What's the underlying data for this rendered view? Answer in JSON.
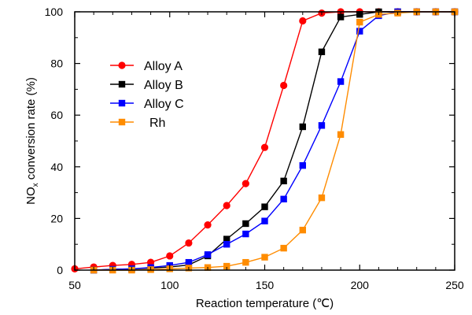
{
  "chart_data": {
    "type": "line",
    "xlabel": "Reaction temperature (℃)",
    "ylabel": "NOx conversion rate (%)",
    "xlim": [
      50,
      250
    ],
    "ylim": [
      0,
      100
    ],
    "xticks": [
      "50",
      "100",
      "150",
      "200",
      "250"
    ],
    "yticks": [
      "0",
      "20",
      "40",
      "60",
      "80",
      "100"
    ],
    "grid": false,
    "legend_position": "upper-left",
    "series": [
      {
        "name": "Alloy A",
        "color": "#ff0000",
        "marker": "circle",
        "x": [
          50,
          60,
          70,
          80,
          90,
          100,
          110,
          120,
          130,
          140,
          150,
          160,
          170,
          180,
          190,
          200,
          210,
          220,
          230,
          240,
          250
        ],
        "y": [
          0.5,
          1.2,
          1.8,
          2.2,
          3.0,
          5.5,
          10.5,
          17.5,
          25.0,
          33.5,
          47.5,
          71.5,
          96.5,
          99.5,
          100,
          100,
          100,
          100,
          100,
          100,
          100
        ]
      },
      {
        "name": "Alloy B",
        "color": "#000000",
        "marker": "square",
        "x": [
          60,
          70,
          80,
          90,
          100,
          110,
          120,
          130,
          140,
          150,
          160,
          170,
          180,
          190,
          200,
          210,
          220,
          230,
          240,
          250
        ],
        "y": [
          0,
          0.3,
          0.5,
          0.8,
          1.2,
          2.0,
          5.5,
          12.0,
          18.0,
          24.5,
          34.5,
          55.5,
          84.5,
          98.0,
          99.0,
          100,
          100,
          100,
          100,
          100
        ]
      },
      {
        "name": "Alloy C",
        "color": "#0000ff",
        "marker": "square",
        "x": [
          60,
          70,
          80,
          90,
          100,
          110,
          120,
          130,
          140,
          150,
          160,
          170,
          180,
          190,
          200,
          210,
          220,
          230,
          240,
          250
        ],
        "y": [
          0,
          0.3,
          0.5,
          1.0,
          1.8,
          3.0,
          6.0,
          10.0,
          14.0,
          19.0,
          27.5,
          40.5,
          56.0,
          73.0,
          92.5,
          98.5,
          100,
          100,
          100,
          100
        ]
      },
      {
        "name": "Rh",
        "color": "#ff8c00",
        "marker": "square",
        "x": [
          60,
          70,
          80,
          90,
          100,
          110,
          120,
          130,
          140,
          150,
          160,
          170,
          180,
          190,
          200,
          210,
          220,
          230,
          240,
          250
        ],
        "y": [
          0,
          0,
          0,
          0.2,
          0.5,
          0.8,
          1.0,
          1.5,
          3.0,
          5.0,
          8.5,
          15.5,
          28.0,
          52.5,
          96.0,
          99.0,
          99.5,
          100,
          100,
          100
        ]
      }
    ]
  }
}
